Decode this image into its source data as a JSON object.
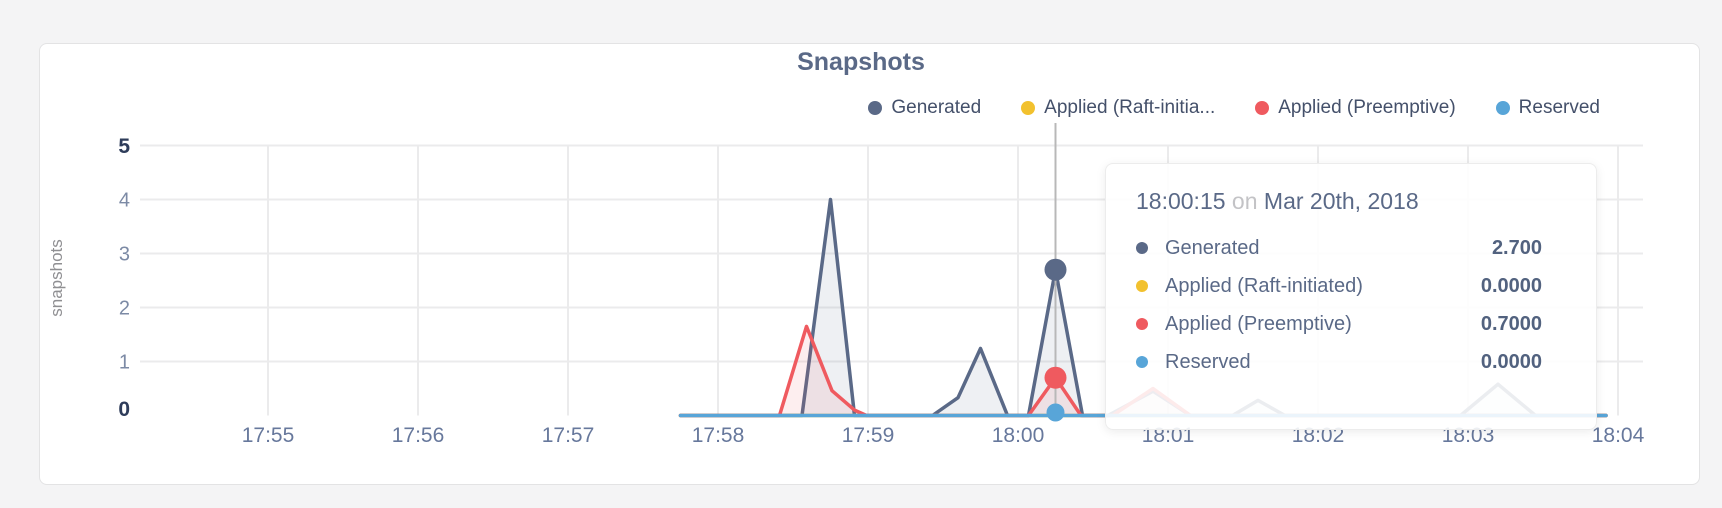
{
  "page": {
    "background": "#f4f4f5",
    "card_background": "#ffffff"
  },
  "chart_data": {
    "type": "area",
    "title": "Snapshots",
    "ylabel": "snapshots",
    "xlabel": "",
    "grid": true,
    "legend_position": "top-right",
    "ylim": [
      0,
      5
    ],
    "x_ticks": [
      "17:55",
      "17:56",
      "17:57",
      "17:58",
      "17:59",
      "18:00",
      "18:01",
      "18:02",
      "18:03",
      "18:04"
    ],
    "y_ticks": [
      {
        "label": "0",
        "value": 0,
        "bold": true
      },
      {
        "label": "1",
        "value": 1,
        "bold": false
      },
      {
        "label": "2",
        "value": 2,
        "bold": false
      },
      {
        "label": "3",
        "value": 3,
        "bold": false
      },
      {
        "label": "4",
        "value": 4,
        "bold": false
      },
      {
        "label": "5",
        "value": 5,
        "bold": true
      }
    ],
    "x_axis_note": "x values below are minutes after 17:55; data spans ~17:57.75 to ~18:03.9",
    "series": [
      {
        "name": "Generated",
        "legend_label": "Generated",
        "color": "#5a6987",
        "fill": "rgba(90,105,135,0.10)",
        "points": [
          [
            2.75,
            0
          ],
          [
            3.56,
            0
          ],
          [
            3.75,
            4.0
          ],
          [
            3.91,
            0
          ],
          [
            4.43,
            0
          ],
          [
            4.6,
            0.33
          ],
          [
            4.75,
            1.24
          ],
          [
            4.93,
            0
          ],
          [
            5.07,
            0
          ],
          [
            5.25,
            2.7
          ],
          [
            5.43,
            0
          ],
          [
            5.6,
            0
          ],
          [
            5.9,
            0.45
          ],
          [
            6.15,
            0
          ],
          [
            6.43,
            0
          ],
          [
            6.6,
            0.28
          ],
          [
            6.78,
            0
          ],
          [
            7.95,
            0
          ],
          [
            8.2,
            0.58
          ],
          [
            8.45,
            0
          ],
          [
            8.92,
            0
          ]
        ]
      },
      {
        "name": "Applied (Raft-initiated)",
        "legend_label": "Applied (Raft-initia...",
        "color": "#f2c12e",
        "fill": "rgba(242,193,46,0.10)",
        "points": [
          [
            2.75,
            0
          ],
          [
            8.92,
            0
          ]
        ]
      },
      {
        "name": "Applied (Preemptive)",
        "legend_label": "Applied (Preemptive)",
        "color": "#ef5a5f",
        "fill": "rgba(239,90,95,0.10)",
        "points": [
          [
            2.75,
            0
          ],
          [
            3.41,
            0
          ],
          [
            3.59,
            1.65
          ],
          [
            3.76,
            0.46
          ],
          [
            3.91,
            0.1
          ],
          [
            3.99,
            0
          ],
          [
            5.07,
            0
          ],
          [
            5.25,
            0.7
          ],
          [
            5.42,
            0
          ],
          [
            5.63,
            0
          ],
          [
            5.9,
            0.5
          ],
          [
            6.15,
            0
          ],
          [
            8.92,
            0
          ]
        ]
      },
      {
        "name": "Reserved",
        "legend_label": "Reserved",
        "color": "#58a5d8",
        "fill": "none",
        "points": [
          [
            2.75,
            0
          ],
          [
            8.92,
            0
          ]
        ]
      }
    ],
    "hover": {
      "t": 5.25,
      "guideline_color": "#b8b8b8",
      "dots": [
        {
          "series": "Generated",
          "value": 2.7,
          "color": "#5a6987",
          "r": 11
        },
        {
          "series": "Applied (Preemptive)",
          "value": 0.7,
          "color": "#ef5a5f",
          "r": 11
        },
        {
          "series": "Reserved",
          "value": 0.0,
          "color": "#58a5d8",
          "r": 9
        }
      ]
    }
  },
  "tooltip": {
    "time": "18:00:15",
    "conjunction": "on",
    "date": "Mar 20th, 2018",
    "rows": [
      {
        "label": "Generated",
        "value": "2.700",
        "color": "#5a6987"
      },
      {
        "label": "Applied (Raft-initiated)",
        "value": "0.0000",
        "color": "#f2c12e"
      },
      {
        "label": "Applied (Preemptive)",
        "value": "0.7000",
        "color": "#ef5a5f"
      },
      {
        "label": "Reserved",
        "value": "0.0000",
        "color": "#58a5d8"
      }
    ]
  }
}
